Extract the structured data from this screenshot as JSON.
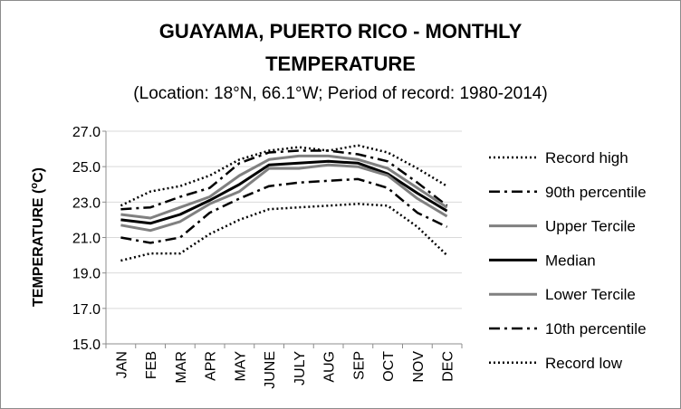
{
  "chart_data": {
    "type": "line",
    "title_line1": "GUAYAMA, PUERTO RICO - MONTHLY",
    "title_line2": "TEMPERATURE",
    "subtitle": "(Location: 18°N, 66.1°W; Period of record: 1980-2014)",
    "ylabel": "TEMPERATURE (ºC)",
    "xlabel": "",
    "ylim": [
      15.0,
      27.0
    ],
    "yticks": [
      "15.0",
      "17.0",
      "19.0",
      "21.0",
      "23.0",
      "25.0",
      "27.0"
    ],
    "categories": [
      "JAN",
      "FEB",
      "MAR",
      "APR",
      "MAY",
      "JUNE",
      "JULY",
      "AUG",
      "SEP",
      "OCT",
      "NOV",
      "DEC"
    ],
    "grid": true,
    "legend_position": "right",
    "series": [
      {
        "name": "Record high",
        "style": "dotted",
        "color": "#000000",
        "values": [
          22.8,
          23.6,
          23.9,
          24.5,
          25.4,
          25.9,
          26.1,
          25.9,
          26.2,
          25.8,
          24.9,
          23.9
        ]
      },
      {
        "name": "90th percentile",
        "style": "dashdot",
        "color": "#000000",
        "values": [
          22.6,
          22.7,
          23.3,
          23.8,
          25.2,
          25.8,
          25.9,
          25.9,
          25.7,
          25.3,
          24.1,
          22.8
        ]
      },
      {
        "name": "Upper Tercile",
        "style": "solid",
        "color": "#808080",
        "values": [
          22.3,
          22.1,
          22.7,
          23.3,
          24.5,
          25.4,
          25.6,
          25.6,
          25.4,
          24.9,
          23.8,
          22.7
        ]
      },
      {
        "name": "Median",
        "style": "solid",
        "color": "#000000",
        "values": [
          22.0,
          21.8,
          22.3,
          23.1,
          24.0,
          25.1,
          25.2,
          25.3,
          25.2,
          24.6,
          23.5,
          22.5
        ]
      },
      {
        "name": "Lower Tercile",
        "style": "solid",
        "color": "#808080",
        "values": [
          21.7,
          21.4,
          21.9,
          22.9,
          23.6,
          24.9,
          24.9,
          25.1,
          25.0,
          24.5,
          23.2,
          22.2
        ]
      },
      {
        "name": "10th percentile",
        "style": "dashdot",
        "color": "#000000",
        "values": [
          21.0,
          20.7,
          21.0,
          22.4,
          23.2,
          23.9,
          24.1,
          24.2,
          24.3,
          23.8,
          22.4,
          21.6
        ]
      },
      {
        "name": "Record low",
        "style": "dotted",
        "color": "#000000",
        "values": [
          19.7,
          20.1,
          20.1,
          21.2,
          22.0,
          22.6,
          22.7,
          22.8,
          22.9,
          22.8,
          21.6,
          20.0
        ]
      }
    ]
  }
}
